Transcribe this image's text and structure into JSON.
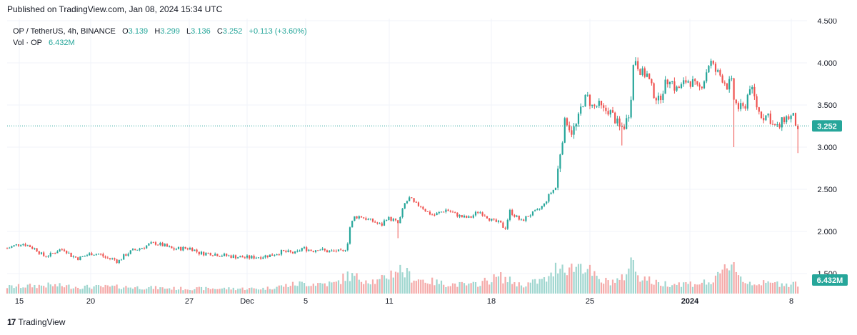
{
  "header": {
    "published_text": "Published on TradingView.com, Jan 08, 2024 15:34 UTC"
  },
  "legend": {
    "symbol": "OP / TetherUS, 4h, BINANCE",
    "open_label": "O",
    "open": "3.139",
    "high_label": "H",
    "high": "3.299",
    "low_label": "L",
    "low": "3.136",
    "close_label": "C",
    "close": "3.252",
    "change": "+0.113 (+3.60%)",
    "vol_label": "Vol · OP",
    "vol_value": "6.432M"
  },
  "footer": {
    "brand": "TradingView",
    "logo_glyph": "17"
  },
  "colors": {
    "up": "#26a69a",
    "down": "#ef5350",
    "up_vol": "#9fd6cf",
    "down_vol": "#f4aaa9",
    "grid": "#f0f3fa",
    "text": "#131722"
  },
  "chart_data": {
    "type": "candlestick",
    "symbol": "OP/USDT",
    "interval": "4h",
    "exchange": "BINANCE",
    "y_axis": {
      "ticks": [
        "1.500",
        "2.000",
        "2.500",
        "3.000",
        "3.500",
        "4.000",
        "4.500"
      ],
      "range": [
        1.42,
        4.52
      ]
    },
    "x_axis": {
      "ticks": [
        "15",
        "20",
        "27",
        "Dec",
        "5",
        "11",
        "18",
        "25",
        "2024",
        "8"
      ]
    },
    "last_price_label": "3.252",
    "last_volume_label": "6.432M",
    "price_path": [
      [
        0,
        1.8
      ],
      [
        20,
        1.86
      ],
      [
        30,
        1.83
      ],
      [
        42,
        1.78
      ],
      [
        50,
        1.71
      ],
      [
        60,
        1.72
      ],
      [
        72,
        1.78
      ],
      [
        80,
        1.79
      ],
      [
        90,
        1.71
      ],
      [
        100,
        1.68
      ],
      [
        118,
        1.74
      ],
      [
        130,
        1.73
      ],
      [
        137,
        1.69
      ],
      [
        150,
        1.67
      ],
      [
        155,
        1.64
      ],
      [
        165,
        1.72
      ],
      [
        175,
        1.77
      ],
      [
        190,
        1.81
      ],
      [
        200,
        1.85
      ],
      [
        208,
        1.86
      ],
      [
        220,
        1.83
      ],
      [
        232,
        1.79
      ],
      [
        248,
        1.8
      ],
      [
        258,
        1.8
      ],
      [
        270,
        1.74
      ],
      [
        285,
        1.74
      ],
      [
        300,
        1.72
      ],
      [
        320,
        1.7
      ],
      [
        338,
        1.69
      ],
      [
        355,
        1.7
      ],
      [
        370,
        1.72
      ],
      [
        385,
        1.76
      ],
      [
        395,
        1.75
      ],
      [
        405,
        1.74
      ],
      [
        412,
        1.8
      ],
      [
        420,
        1.79
      ],
      [
        428,
        1.77
      ],
      [
        436,
        1.8
      ],
      [
        444,
        1.77
      ],
      [
        452,
        1.76
      ],
      [
        460,
        1.77
      ],
      [
        465,
        1.76
      ],
      [
        470,
        1.75
      ],
      [
        476,
        1.83
      ],
      [
        480,
        2.05
      ],
      [
        486,
        2.17
      ],
      [
        495,
        2.18
      ],
      [
        505,
        2.14
      ],
      [
        515,
        2.11
      ],
      [
        524,
        2.07
      ],
      [
        531,
        2.16
      ],
      [
        540,
        2.14
      ],
      [
        548,
        2.09
      ],
      [
        556,
        2.32
      ],
      [
        564,
        2.4
      ],
      [
        570,
        2.33
      ],
      [
        580,
        2.3
      ],
      [
        588,
        2.23
      ],
      [
        597,
        2.19
      ],
      [
        605,
        2.22
      ],
      [
        615,
        2.26
      ],
      [
        626,
        2.21
      ],
      [
        637,
        2.17
      ],
      [
        648,
        2.16
      ],
      [
        660,
        2.24
      ],
      [
        670,
        2.19
      ],
      [
        680,
        2.12
      ],
      [
        690,
        2.1
      ],
      [
        697,
        2.03
      ],
      [
        704,
        2.24
      ],
      [
        712,
        2.18
      ],
      [
        720,
        2.12
      ],
      [
        730,
        2.19
      ],
      [
        742,
        2.24
      ],
      [
        752,
        2.32
      ],
      [
        760,
        2.45
      ],
      [
        768,
        2.52
      ],
      [
        774,
        2.92
      ],
      [
        782,
        3.35
      ],
      [
        790,
        3.18
      ],
      [
        798,
        3.27
      ],
      [
        805,
        3.52
      ],
      [
        812,
        3.6
      ],
      [
        820,
        3.47
      ],
      [
        828,
        3.5
      ],
      [
        835,
        3.43
      ],
      [
        842,
        3.44
      ],
      [
        850,
        3.35
      ],
      [
        858,
        3.22
      ],
      [
        865,
        3.26
      ],
      [
        872,
        3.45
      ],
      [
        878,
        4.09
      ],
      [
        884,
        3.95
      ],
      [
        890,
        3.87
      ],
      [
        896,
        3.86
      ],
      [
        904,
        3.66
      ],
      [
        912,
        3.55
      ],
      [
        920,
        3.72
      ],
      [
        928,
        3.83
      ],
      [
        936,
        3.68
      ],
      [
        944,
        3.72
      ],
      [
        952,
        3.8
      ],
      [
        960,
        3.76
      ],
      [
        968,
        3.67
      ],
      [
        976,
        3.81
      ],
      [
        984,
        4.03
      ],
      [
        992,
        3.9
      ],
      [
        1000,
        3.84
      ],
      [
        1008,
        3.73
      ],
      [
        1014,
        3.78
      ],
      [
        1018,
        3.55
      ],
      [
        1024,
        3.47
      ],
      [
        1032,
        3.45
      ],
      [
        1040,
        3.73
      ],
      [
        1046,
        3.59
      ],
      [
        1052,
        3.42
      ],
      [
        1060,
        3.36
      ],
      [
        1066,
        3.39
      ],
      [
        1072,
        3.26
      ],
      [
        1080,
        3.22
      ],
      [
        1088,
        3.34
      ],
      [
        1096,
        3.36
      ],
      [
        1102,
        3.35
      ],
      [
        1106,
        3.22
      ],
      [
        1110,
        3.0
      ],
      [
        1114,
        3.14
      ],
      [
        1118,
        3.25
      ]
    ],
    "wick_spikes": [
      {
        "x": 1016,
        "low": 3.0
      },
      {
        "x": 860,
        "low": 3.02
      },
      {
        "x": 548,
        "low": 1.92
      },
      {
        "x": 1108,
        "low": 2.93
      }
    ],
    "volume_path": [
      [
        0,
        0.2
      ],
      [
        60,
        0.25
      ],
      [
        100,
        0.2
      ],
      [
        160,
        0.2
      ],
      [
        240,
        0.15
      ],
      [
        300,
        0.15
      ],
      [
        360,
        0.15
      ],
      [
        410,
        0.3
      ],
      [
        460,
        0.3
      ],
      [
        476,
        0.55
      ],
      [
        484,
        0.5
      ],
      [
        520,
        0.35
      ],
      [
        548,
        0.75
      ],
      [
        570,
        0.45
      ],
      [
        610,
        0.3
      ],
      [
        650,
        0.25
      ],
      [
        690,
        0.5
      ],
      [
        720,
        0.25
      ],
      [
        760,
        0.45
      ],
      [
        772,
        0.9
      ],
      [
        790,
        0.75
      ],
      [
        805,
        0.9
      ],
      [
        830,
        0.35
      ],
      [
        860,
        0.4
      ],
      [
        876,
        1.0
      ],
      [
        884,
        0.55
      ],
      [
        910,
        0.3
      ],
      [
        960,
        0.3
      ],
      [
        990,
        0.35
      ],
      [
        1016,
        1.0
      ],
      [
        1030,
        0.35
      ],
      [
        1060,
        0.3
      ],
      [
        1100,
        0.3
      ],
      [
        1118,
        0.3
      ]
    ]
  }
}
